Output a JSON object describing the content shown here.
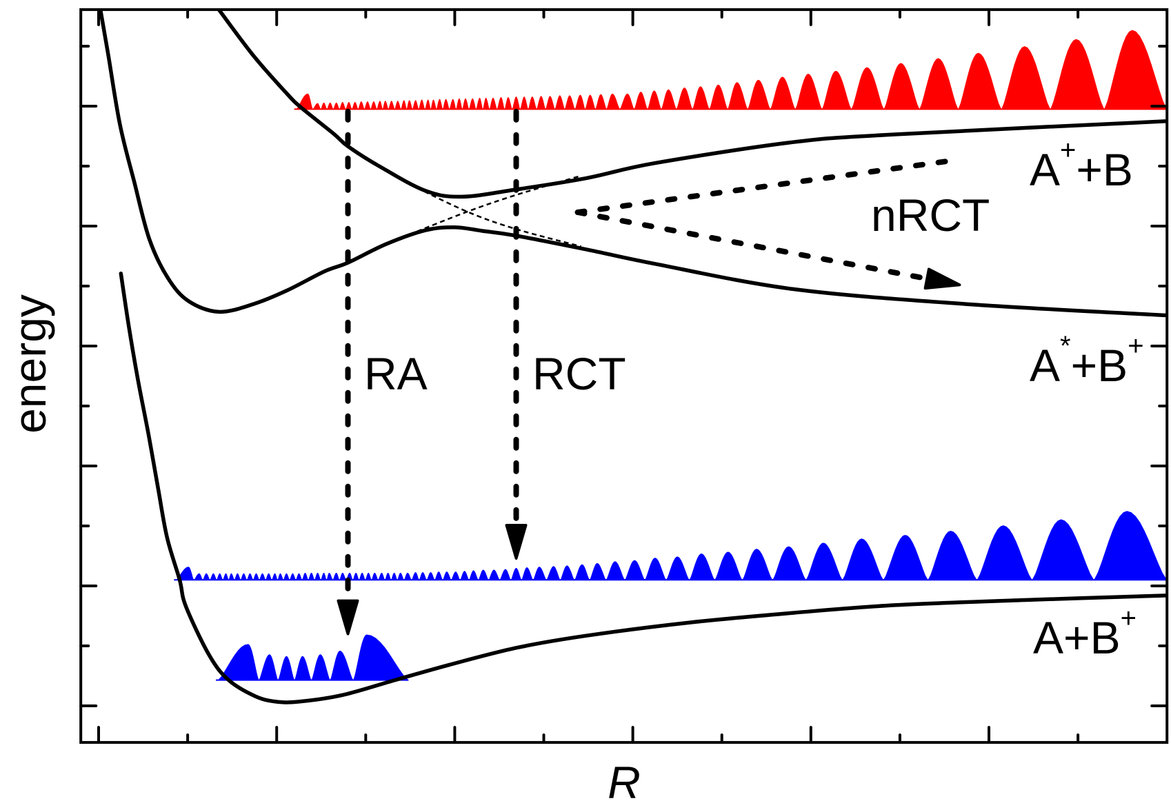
{
  "chart_data": {
    "type": "line",
    "xlabel": "R",
    "ylabel": "energy",
    "xlim": [
      -0.2,
      12.0
    ],
    "ylim": [
      -0.61,
      11.61
    ],
    "grid": false,
    "xticks": {
      "major": [
        0,
        2,
        4,
        6,
        8,
        10
      ],
      "minor": [
        1,
        3,
        5,
        7,
        9,
        11
      ]
    },
    "yticks": {
      "major": [
        0,
        2,
        4,
        6,
        8,
        10
      ],
      "minor": [
        1,
        3,
        5,
        7,
        9,
        11
      ]
    },
    "line_color": "#000000",
    "curves": {
      "a_plus_b_plus": {
        "R": [
          0.25,
          0.34,
          0.44,
          0.56,
          0.67,
          0.77,
          0.91,
          0.98,
          1.24,
          1.46,
          1.76,
          1.99,
          2.25,
          2.74,
          3.33,
          3.93,
          4.7,
          5.48,
          6.64,
          7.8,
          8.96,
          10.51,
          12.0
        ],
        "E": [
          7.21,
          6.32,
          5.45,
          4.53,
          3.61,
          2.8,
          2.1,
          1.66,
          0.85,
          0.43,
          0.16,
          0.07,
          0.07,
          0.18,
          0.43,
          0.68,
          0.97,
          1.17,
          1.39,
          1.55,
          1.68,
          1.77,
          1.84
        ]
      },
      "a_star_plus_b_plus": {
        "R": [
          0.02,
          0.11,
          0.24,
          0.4,
          0.57,
          0.78,
          1.01,
          1.35,
          1.74,
          2.12,
          2.53,
          2.8,
          3.23,
          3.67,
          4.0,
          4.31,
          4.69,
          5.48,
          6.25,
          7.8,
          9.74,
          12.0
        ],
        "E": [
          11.61,
          10.84,
          9.69,
          8.74,
          7.78,
          7.13,
          6.75,
          6.57,
          6.7,
          6.93,
          7.24,
          7.39,
          7.7,
          7.93,
          7.98,
          7.92,
          7.84,
          7.61,
          7.37,
          6.95,
          6.7,
          6.51
        ]
      },
      "a_plus_plus_b": {
        "R": [
          1.35,
          1.74,
          2.12,
          2.28,
          2.64,
          2.8,
          3.15,
          3.67,
          4.08,
          4.69,
          5.48,
          6.25,
          7.8,
          8.96,
          12.0
        ],
        "E": [
          11.61,
          10.84,
          10.2,
          9.97,
          9.54,
          9.33,
          9.0,
          8.59,
          8.49,
          8.61,
          8.8,
          9.05,
          9.4,
          9.53,
          9.75
        ]
      }
    },
    "diabatic": {
      "repulsive": {
        "R": [
          3.49,
          4.14,
          4.69,
          5.42
        ],
        "E": [
          8.7,
          8.24,
          7.95,
          7.66
        ]
      },
      "attractive": {
        "R": [
          3.49,
          4.14,
          4.69,
          5.42
        ],
        "E": [
          7.86,
          8.24,
          8.52,
          8.84
        ]
      }
    },
    "wavefunctions": {
      "incoming_continuum": {
        "color": "#ff0000",
        "baseline_E": 9.95,
        "R_start": 2.22,
        "R_end": 12.0,
        "peaks_R": [
          2.35,
          2.46,
          2.53,
          2.6,
          2.67,
          2.74,
          2.81,
          2.88,
          2.95,
          3.02,
          3.09,
          3.16,
          3.22,
          3.29,
          3.36,
          3.43,
          3.49,
          3.56,
          3.63,
          3.7,
          3.76,
          3.83,
          3.9,
          3.98,
          4.05,
          4.12,
          4.2,
          4.28,
          4.35,
          4.43,
          4.52,
          4.6,
          4.69,
          4.78,
          4.87,
          4.97,
          5.07,
          5.18,
          5.29,
          5.41,
          5.52,
          5.64,
          5.77,
          5.94,
          6.09,
          6.24,
          6.4,
          6.58,
          6.76,
          6.96,
          7.17,
          7.41,
          7.68,
          7.97,
          8.28,
          8.63,
          9.01,
          9.43,
          9.88,
          10.4,
          10.98,
          11.61
        ],
        "peaks_h": [
          0.26,
          0.1,
          0.11,
          0.11,
          0.11,
          0.12,
          0.12,
          0.12,
          0.13,
          0.13,
          0.13,
          0.14,
          0.14,
          0.14,
          0.14,
          0.15,
          0.15,
          0.15,
          0.16,
          0.16,
          0.16,
          0.17,
          0.17,
          0.17,
          0.18,
          0.18,
          0.18,
          0.19,
          0.19,
          0.19,
          0.2,
          0.2,
          0.21,
          0.21,
          0.21,
          0.22,
          0.22,
          0.23,
          0.23,
          0.24,
          0.24,
          0.25,
          0.26,
          0.26,
          0.29,
          0.31,
          0.33,
          0.36,
          0.38,
          0.41,
          0.45,
          0.49,
          0.54,
          0.59,
          0.64,
          0.7,
          0.77,
          0.85,
          0.94,
          1.05,
          1.17,
          1.32
        ]
      },
      "outgoing_continuum": {
        "color": "#0000ff",
        "baseline_E": 2.1,
        "R_start": 0.87,
        "R_end": 12.0,
        "peaks_R": [
          1.01,
          1.13,
          1.21,
          1.29,
          1.36,
          1.43,
          1.49,
          1.56,
          1.63,
          1.7,
          1.77,
          1.84,
          1.91,
          1.98,
          2.04,
          2.11,
          2.18,
          2.25,
          2.32,
          2.39,
          2.46,
          2.53,
          2.59,
          2.67,
          2.74,
          2.82,
          2.89,
          2.96,
          3.03,
          3.1,
          3.18,
          3.25,
          3.32,
          3.39,
          3.47,
          3.56,
          3.64,
          3.73,
          3.82,
          3.91,
          4.01,
          4.11,
          4.21,
          4.32,
          4.44,
          4.57,
          4.69,
          4.81,
          4.95,
          5.11,
          5.26,
          5.43,
          5.6,
          5.8,
          6.02,
          6.25,
          6.5,
          6.77,
          7.07,
          7.39,
          7.75,
          8.14,
          8.57,
          9.06,
          9.57,
          10.16,
          10.81,
          11.55
        ],
        "peaks_h": [
          0.22,
          0.11,
          0.11,
          0.11,
          0.11,
          0.11,
          0.11,
          0.11,
          0.11,
          0.11,
          0.11,
          0.11,
          0.11,
          0.11,
          0.11,
          0.11,
          0.11,
          0.11,
          0.12,
          0.12,
          0.12,
          0.12,
          0.12,
          0.12,
          0.12,
          0.12,
          0.12,
          0.12,
          0.12,
          0.12,
          0.12,
          0.12,
          0.12,
          0.12,
          0.12,
          0.13,
          0.13,
          0.13,
          0.14,
          0.14,
          0.14,
          0.15,
          0.16,
          0.17,
          0.17,
          0.18,
          0.2,
          0.21,
          0.22,
          0.23,
          0.24,
          0.26,
          0.28,
          0.31,
          0.33,
          0.37,
          0.39,
          0.44,
          0.47,
          0.52,
          0.56,
          0.62,
          0.69,
          0.75,
          0.82,
          0.91,
          1.01,
          1.15
        ]
      },
      "bound_state": {
        "color": "#0000ff",
        "baseline_E": 0.43,
        "R_start": 1.34,
        "R_end": 3.48,
        "peaks_R": [
          1.68,
          1.92,
          2.11,
          2.29,
          2.49,
          2.71,
          3.01
        ],
        "peaks_h": [
          0.6,
          0.43,
          0.4,
          0.4,
          0.43,
          0.49,
          0.76
        ]
      }
    },
    "arrows": {
      "ra": {
        "from": [
          2.8,
          9.91
        ],
        "to": [
          2.8,
          1.2
        ],
        "head": true
      },
      "rct": {
        "from": [
          4.69,
          9.91
        ],
        "to": [
          4.69,
          2.46
        ],
        "head": true
      },
      "nrct_upper": {
        "from": [
          5.38,
          8.23
        ],
        "to": [
          9.57,
          9.09
        ],
        "head": false
      },
      "nrct_lower": {
        "from": [
          5.38,
          8.23
        ],
        "to": [
          9.67,
          7.02
        ],
        "head": true
      }
    },
    "labels": {
      "a_plus_plus_b": {
        "base": "A",
        "sup": "+",
        "rest": "+B"
      },
      "a_star_plus_b_plus": {
        "base": "A",
        "sup": "*",
        "rest": "+B",
        "sup2": "+"
      },
      "a_plus_b_plus": {
        "base": "A+B",
        "sup": "+"
      },
      "nrct": "nRCT",
      "ra": "RA",
      "rct": "RCT"
    }
  }
}
